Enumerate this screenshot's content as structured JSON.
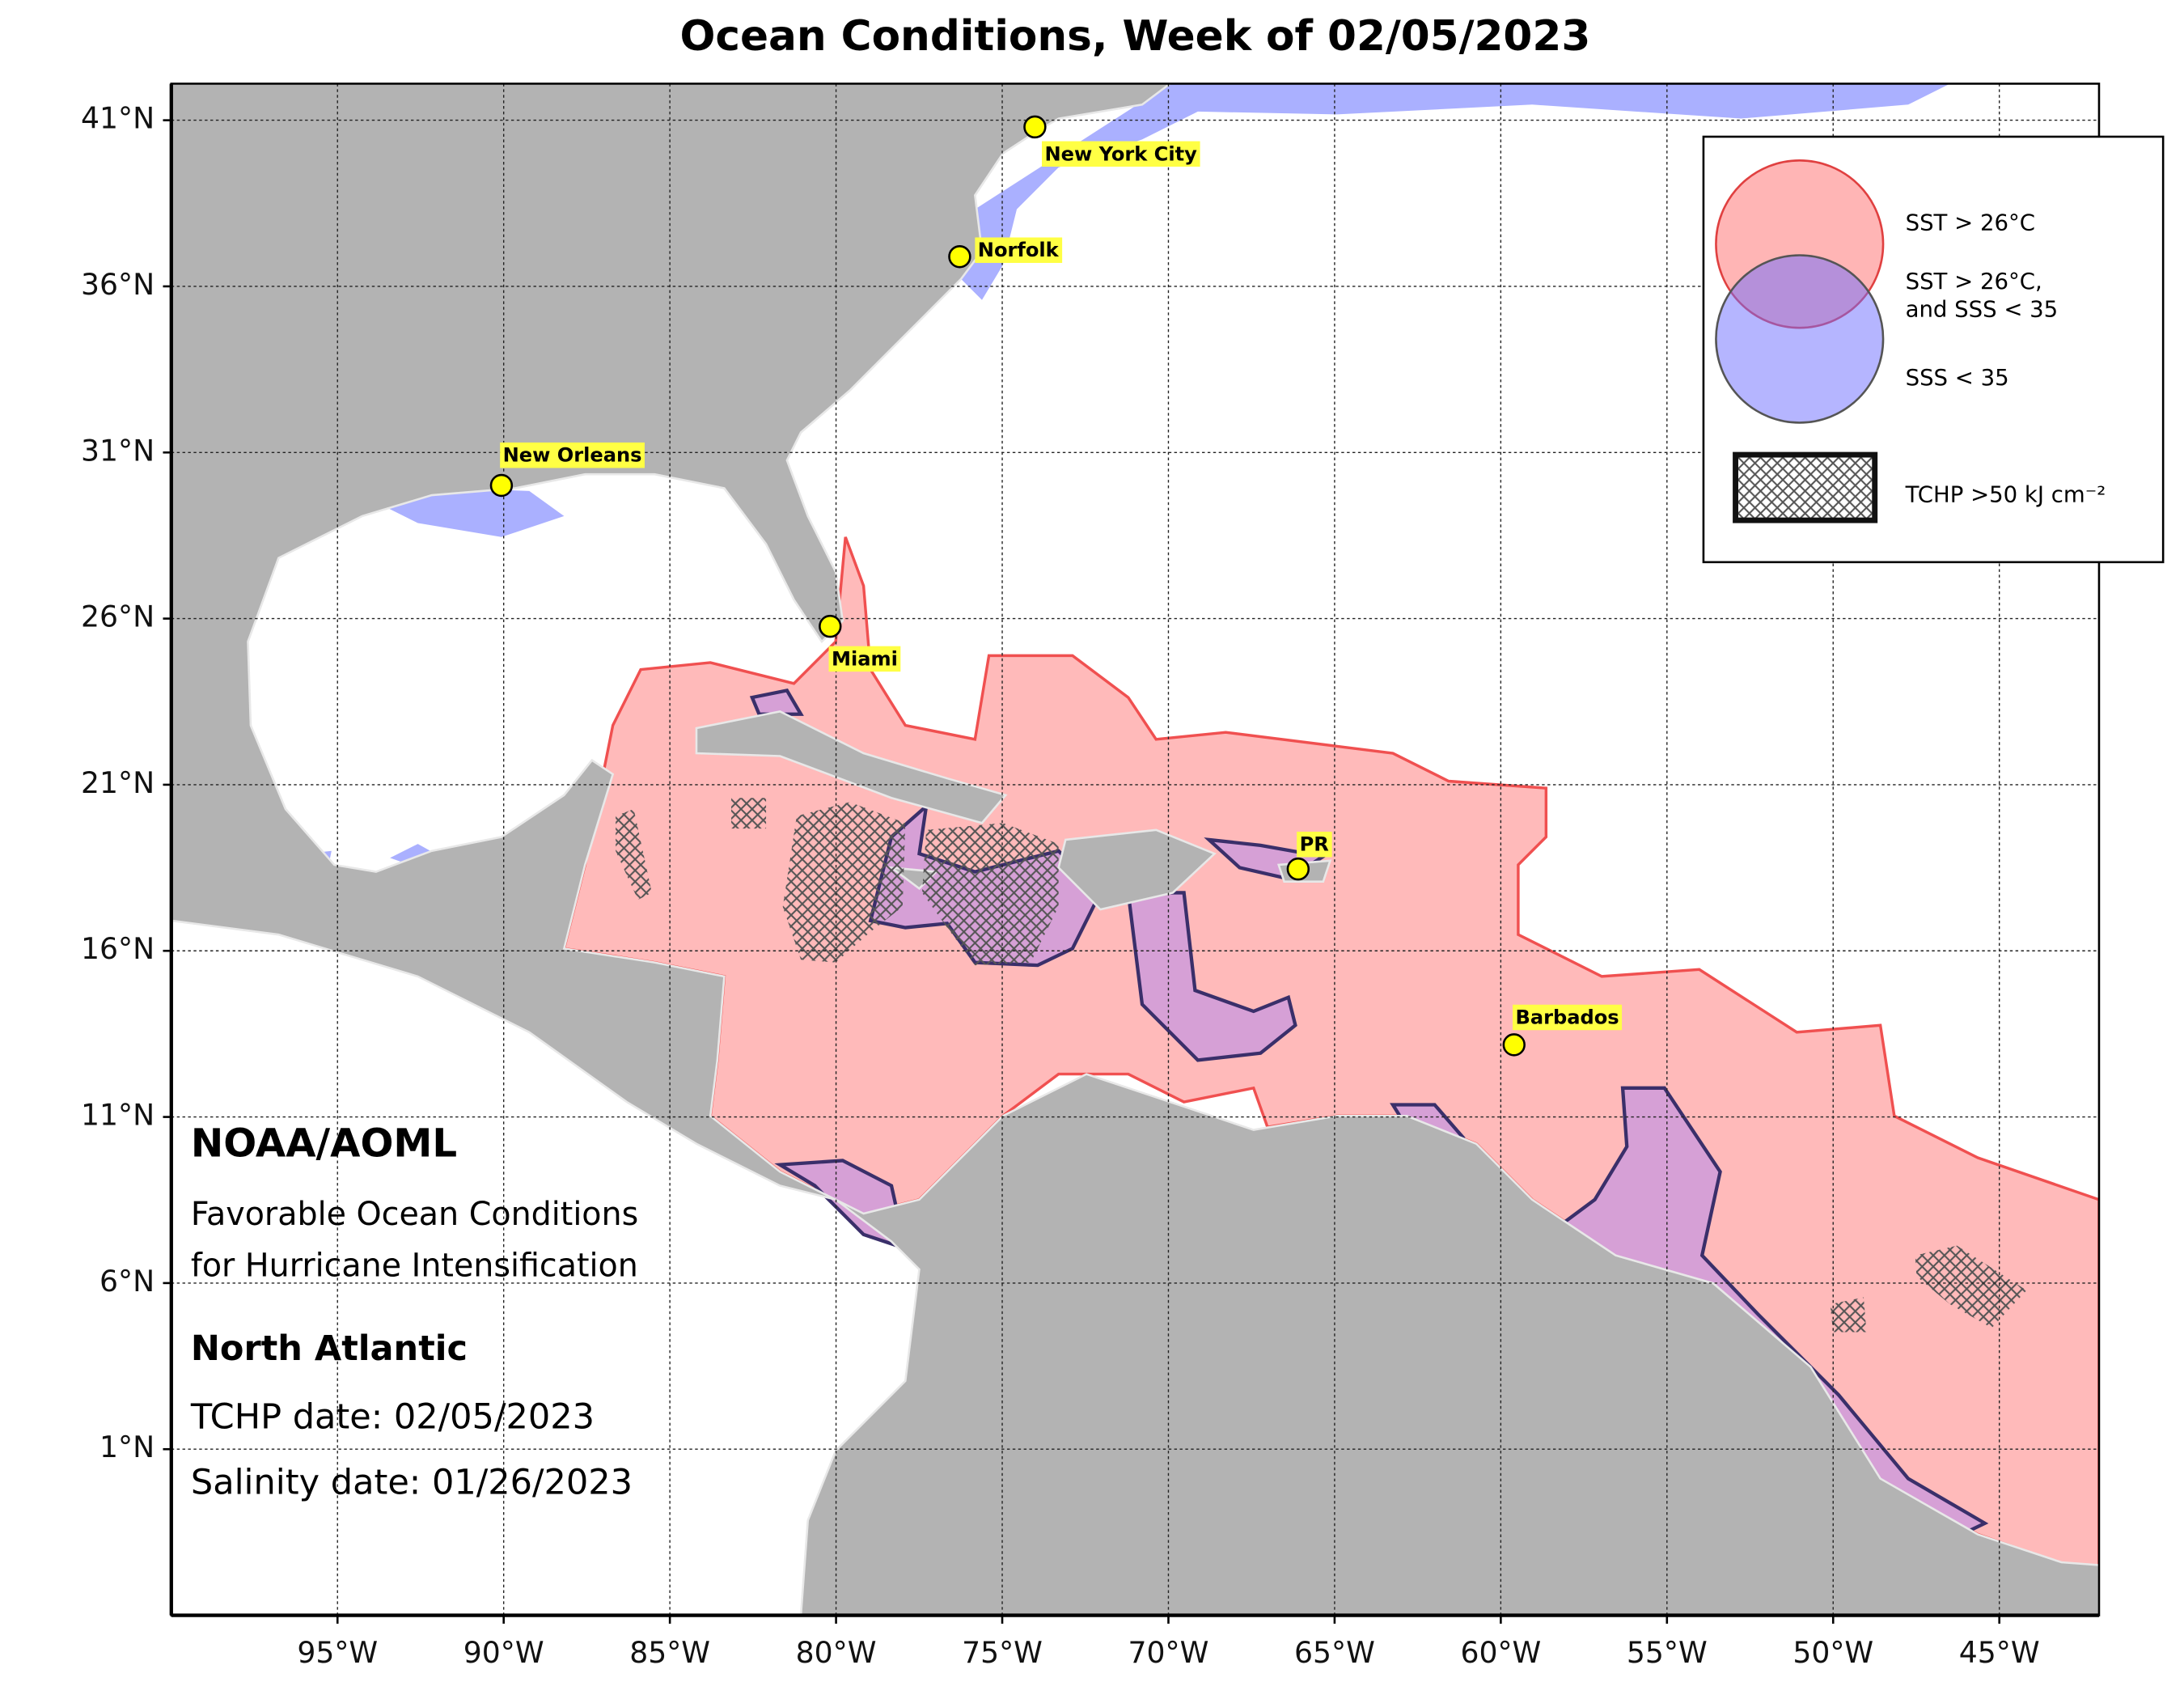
{
  "map": {
    "title": "Ocean Conditions, Week of 02/05/2023",
    "xlim": [
      -100,
      -42
    ],
    "ylim": [
      -4,
      42.1
    ],
    "xticks": [
      {
        "value": -95,
        "label": "95°W"
      },
      {
        "value": -90,
        "label": "90°W"
      },
      {
        "value": -85,
        "label": "85°W"
      },
      {
        "value": -80,
        "label": "80°W"
      },
      {
        "value": -75,
        "label": "75°W"
      },
      {
        "value": -70,
        "label": "70°W"
      },
      {
        "value": -65,
        "label": "65°W"
      },
      {
        "value": -60,
        "label": "60°W"
      },
      {
        "value": -55,
        "label": "55°W"
      },
      {
        "value": -50,
        "label": "50°W"
      },
      {
        "value": -45,
        "label": "45°W"
      }
    ],
    "yticks": [
      {
        "value": 41,
        "label": "41°N"
      },
      {
        "value": 36,
        "label": "36°N"
      },
      {
        "value": 31,
        "label": "31°N"
      },
      {
        "value": 26,
        "label": "26°N"
      },
      {
        "value": 21,
        "label": "21°N"
      },
      {
        "value": 16,
        "label": "16°N"
      },
      {
        "value": 11,
        "label": "11°N"
      },
      {
        "value": 6,
        "label": "6°N"
      },
      {
        "value": 1,
        "label": "1°N"
      }
    ],
    "grid": true,
    "cities": [
      "New York City",
      "Norfolk",
      "New Orleans",
      "Miami",
      "PR",
      "Barbados"
    ],
    "legend": {
      "sst": "SST > 26°C",
      "both_line1": "SST > 26°C,",
      "both_line2": "and SSS < 35",
      "sss": "SSS < 35",
      "tchp": "TCHP >50 kJ cm⁻²"
    },
    "annotations": {
      "org": "NOAA/AOML",
      "desc_line1": "Favorable Ocean Conditions",
      "desc_line2": "for Hurricane Intensification",
      "region": "North Atlantic",
      "tchp_date": "TCHP date: 02/05/2023",
      "salinity_date": "Salinity date: 01/26/2023"
    }
  }
}
